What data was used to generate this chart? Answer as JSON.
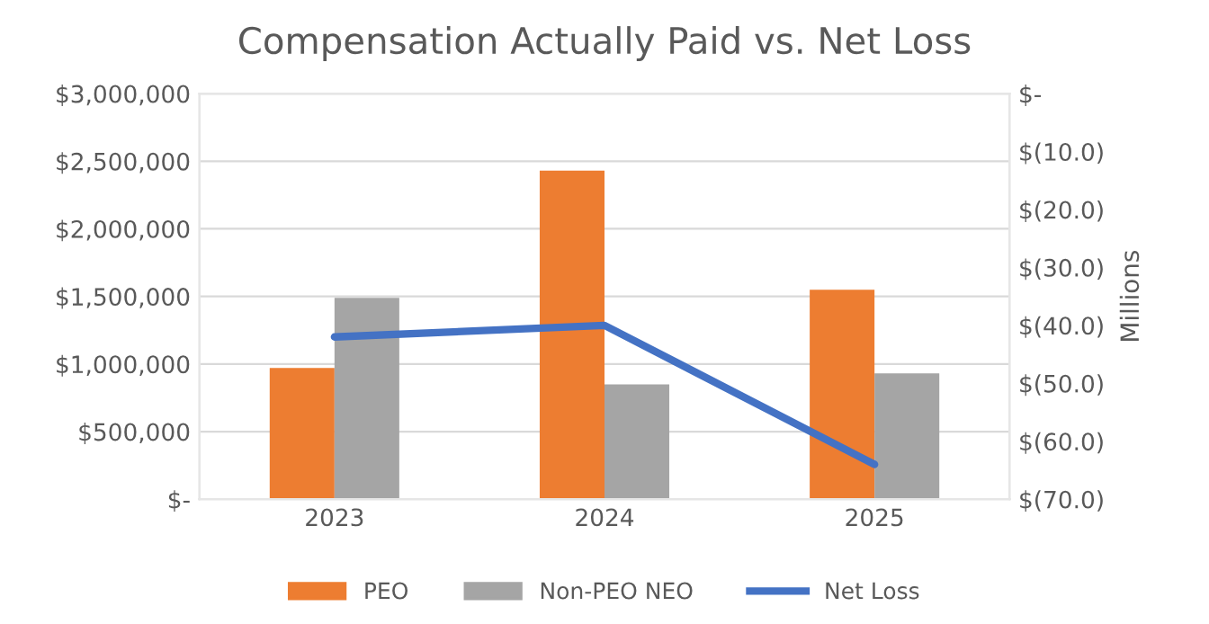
{
  "chart_data": {
    "type": "bar",
    "title": "Compensation Actually Paid vs. Net Loss",
    "categories": [
      "2023",
      "2024",
      "2025"
    ],
    "series": [
      {
        "name": "PEO",
        "color": "#ed7d31",
        "values": [
          970000,
          2430000,
          1550000
        ]
      },
      {
        "name": "Non-PEO NEO",
        "color": "#a5a5a5",
        "values": [
          1490000,
          850000,
          930000
        ]
      },
      {
        "name": "Net Loss",
        "type": "line",
        "axis": "y2",
        "color": "#4472c4",
        "values": [
          -42,
          -40,
          -64
        ]
      }
    ],
    "ylim": [
      0,
      3000000
    ],
    "yticks": [
      {
        "value": 0,
        "label": "$-"
      },
      {
        "value": 500000,
        "label": "$500,000"
      },
      {
        "value": 1000000,
        "label": "$1,000,000"
      },
      {
        "value": 1500000,
        "label": "$1,500,000"
      },
      {
        "value": 2000000,
        "label": "$2,000,000"
      },
      {
        "value": 2500000,
        "label": "$2,500,000"
      },
      {
        "value": 3000000,
        "label": "$3,000,000"
      }
    ],
    "y2label": "Millions",
    "y2lim": [
      -70,
      0
    ],
    "y2ticks": [
      {
        "value": 0,
        "label": "$-"
      },
      {
        "value": -10,
        "label": "$(10.0)"
      },
      {
        "value": -20,
        "label": "$(20.0)"
      },
      {
        "value": -30,
        "label": "$(30.0)"
      },
      {
        "value": -40,
        "label": "$(40.0)"
      },
      {
        "value": -50,
        "label": "$(50.0)"
      },
      {
        "value": -60,
        "label": "$(60.0)"
      },
      {
        "value": -70,
        "label": "$(70.0)"
      }
    ],
    "grid": "y",
    "legend": "bottom",
    "marker": "none",
    "line_style": "solid"
  }
}
